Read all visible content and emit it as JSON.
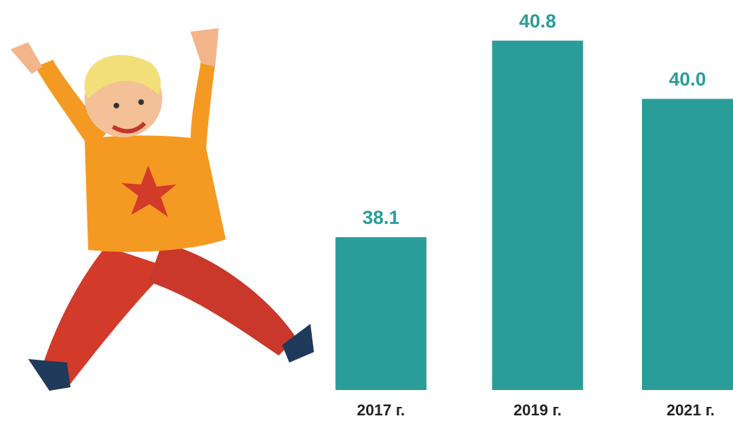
{
  "chart_data": {
    "type": "bar",
    "categories": [
      "2017 г.",
      "2019 г.",
      "2021 г."
    ],
    "values": [
      38.1,
      40.8,
      40.0
    ],
    "value_labels": [
      "38.1",
      "40.8",
      "40.0"
    ],
    "color": "#2a9d99",
    "ylim": [
      36,
      41
    ]
  }
}
